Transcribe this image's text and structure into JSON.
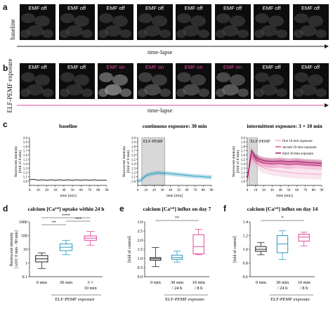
{
  "panel_a": {
    "letter": "a",
    "row_label": "baseline",
    "frames": [
      "EMF off",
      "EMF off",
      "EMF off",
      "EMF off",
      "EMF off",
      "EMF off",
      "EMF off",
      "EMF off"
    ],
    "arrow_label": "time-lapse"
  },
  "panel_b": {
    "letter": "b",
    "row_label": "ELF-PEMF exposure",
    "frames": [
      {
        "label": "EMF off",
        "state": "off"
      },
      {
        "label": "EMF off",
        "state": "off"
      },
      {
        "label": "EMF on",
        "state": "on"
      },
      {
        "label": "EMF on",
        "state": "on"
      },
      {
        "label": "EMF on",
        "state": "on"
      },
      {
        "label": "EMF on",
        "state": "on"
      },
      {
        "label": "EMF off",
        "state": "off"
      },
      {
        "label": "EMF off",
        "state": "off"
      }
    ],
    "arrow_label": "time-lapse",
    "on_color": "#e0489a"
  },
  "panel_c": {
    "letter": "c",
    "charts": [
      {
        "title": "baseline",
        "ylabel": "fluorescent intensity [fold of 0 min]",
        "xlabel": "time [min]",
        "type": "line",
        "xlim": [
          0,
          90
        ],
        "ylim": [
          0.9,
          2.0
        ],
        "xticks": [
          0,
          10,
          20,
          30,
          40,
          50,
          60,
          70,
          80,
          90
        ],
        "yticks": [
          "1.0",
          "1.1",
          "1.2",
          "1.3",
          "1.4",
          "1.5",
          "1.6",
          "1.7",
          "1.8",
          "1.9",
          "2.0"
        ],
        "series": [
          {
            "color": "#222222",
            "x": [
              0,
              5,
              10,
              15,
              20,
              25,
              30,
              35,
              40,
              45,
              50,
              55,
              60,
              65,
              70,
              75,
              80,
              85,
              90
            ],
            "y": [
              1.03,
              1.04,
              1.02,
              1.03,
              1.02,
              1.03,
              1.02,
              1.03,
              1.02,
              1.03,
              1.02,
              1.03,
              1.02,
              1.03,
              1.02,
              1.03,
              1.02,
              1.02,
              1.02
            ]
          }
        ]
      },
      {
        "title": "continuous exposure: 30 min",
        "ylabel": "fluorescent intensity [fold of 0 min]",
        "xlabel": "time [min]",
        "type": "line",
        "xlim": [
          0,
          90
        ],
        "ylim": [
          0.9,
          2.0
        ],
        "xticks": [
          0,
          10,
          20,
          30,
          40,
          50,
          60,
          70,
          80,
          90
        ],
        "yticks": [
          "1.0",
          "1.1",
          "1.2",
          "1.3",
          "1.4",
          "1.5",
          "1.6",
          "1.7",
          "1.8",
          "1.9",
          "2.0"
        ],
        "shade": {
          "label": "ELF-PEMF",
          "from": 5,
          "to": 33
        },
        "series": [
          {
            "color": "#2a9bbf",
            "x": [
              0,
              3,
              6,
              9,
              12,
              15,
              18,
              21,
              24,
              27,
              30,
              33,
              36,
              40,
              45,
              50,
              55,
              60,
              65,
              70,
              75,
              80,
              85,
              90
            ],
            "y": [
              1.0,
              1.01,
              1.06,
              1.11,
              1.14,
              1.16,
              1.17,
              1.18,
              1.19,
              1.19,
              1.18,
              1.18,
              1.18,
              1.17,
              1.16,
              1.15,
              1.14,
              1.13,
              1.12,
              1.11,
              1.11,
              1.1,
              1.09,
              1.09
            ],
            "band": 0.05
          }
        ]
      },
      {
        "title": "intermittent exposure: 3 × 10 min",
        "ylabel": "fluorescent intensity [fold of 0 min]",
        "xlabel": "time [min]",
        "type": "line",
        "xlim": [
          0,
          90
        ],
        "ylim": [
          0.9,
          2.0
        ],
        "xticks": [
          0,
          10,
          20,
          30,
          40,
          50,
          60,
          70,
          80,
          90
        ],
        "yticks": [
          "1.0",
          "1.1",
          "1.2",
          "1.3",
          "1.4",
          "1.5",
          "1.6",
          "1.7",
          "1.8",
          "1.9",
          "2.0"
        ],
        "shade": {
          "label": "ELF-PEMF",
          "from": 2,
          "to": 12
        },
        "legend": [
          "first 10 min exposure",
          "second 10 min exposure",
          "third 10 min exposure"
        ],
        "series": [
          {
            "name": "first 10 min exposure",
            "color": "#f0a8c8",
            "x": [
              0,
              5,
              10,
              15,
              20,
              30,
              40,
              50,
              60,
              70,
              80,
              90
            ],
            "y": [
              1.05,
              1.55,
              1.45,
              1.35,
              1.3,
              1.25,
              1.22,
              1.2,
              1.18,
              1.17,
              1.16,
              1.15
            ],
            "band": 0.12
          },
          {
            "name": "second 10 min exposure",
            "color": "#e0489a",
            "x": [
              0,
              5,
              10,
              15,
              20,
              30,
              40,
              50,
              60,
              70,
              80,
              90
            ],
            "y": [
              1.05,
              1.6,
              1.5,
              1.45,
              1.42,
              1.4,
              1.41,
              1.38,
              1.4,
              1.38,
              1.37,
              1.36
            ],
            "band": 0.1
          },
          {
            "name": "third 10 min exposure",
            "color": "#9a1458",
            "x": [
              0,
              5,
              10,
              15,
              20,
              30,
              40,
              50,
              60,
              70,
              80,
              90
            ],
            "y": [
              1.05,
              1.7,
              1.55,
              1.5,
              1.47,
              1.45,
              1.46,
              1.44,
              1.45,
              1.43,
              1.42,
              1.41
            ],
            "band": 0.08
          }
        ]
      }
    ]
  },
  "panel_d": {
    "letter": "d",
    "title": "calcium [Ca²⁺] uptake within 24 h",
    "ylabel": "fluorescent intensity [AUC 0 min - 90 min]",
    "yticks": [
      "0.1",
      "1",
      "10",
      "100",
      "1000"
    ],
    "categories": [
      "0 min",
      "30 min",
      "3 ×\n10 min"
    ],
    "xlabel": "ELF-PEMF exposure",
    "type": "box",
    "log": true,
    "colors": [
      "#222222",
      "#2a9bbf",
      "#e0489a"
    ],
    "boxes": [
      {
        "min": 0.4,
        "q1": 1.2,
        "median": 2.0,
        "q3": 3.5,
        "max": 5.5
      },
      {
        "min": 4,
        "q1": 8,
        "median": 14,
        "q3": 25,
        "max": 45
      },
      {
        "min": 20,
        "q1": 45,
        "median": 65,
        "q3": 95,
        "max": 200
      }
    ],
    "significance": [
      "****",
      "**",
      "***"
    ]
  },
  "panel_e": {
    "letter": "e",
    "title": "calcium [Ca²⁺] influx on day 7",
    "ylabel": "[fold of control]",
    "yticks": [
      "0.0",
      "0.5",
      "1.0",
      "1.5",
      "2.0",
      "2.5",
      "3.0"
    ],
    "categories": [
      "0 min",
      "30 min\n/ 24 h",
      "10 min\n/ 8 h"
    ],
    "xlabel": "ELF-PEMF exposure",
    "type": "box",
    "colors": [
      "#222222",
      "#2a9bbf",
      "#e0489a"
    ],
    "boxes": [
      {
        "min": 0.55,
        "q1": 0.9,
        "median": 0.98,
        "q3": 1.05,
        "max": 1.6
      },
      {
        "min": 0.8,
        "q1": 0.95,
        "median": 1.05,
        "q3": 1.18,
        "max": 1.4
      },
      {
        "min": 1.2,
        "q1": 1.25,
        "median": 1.65,
        "q3": 2.3,
        "max": 2.6
      }
    ],
    "significance": [
      "**"
    ]
  },
  "panel_f": {
    "letter": "f",
    "title": "calcium [Ca²⁺] influx on day 14",
    "ylabel": "[fold of control]",
    "yticks": [
      "0.6",
      "0.8",
      "1.0",
      "1.2",
      "1.4"
    ],
    "categories": [
      "0 min",
      "30 min\n/ 24 h",
      "10 min\n/ 8 h"
    ],
    "xlabel": "ELF-PEMF exposure",
    "type": "box",
    "colors": [
      "#222222",
      "#2a9bbf",
      "#e0489a"
    ],
    "boxes": [
      {
        "min": 0.92,
        "q1": 0.97,
        "median": 1.0,
        "q3": 1.04,
        "max": 1.1
      },
      {
        "min": 0.85,
        "q1": 0.95,
        "median": 1.08,
        "q3": 1.2,
        "max": 1.27
      },
      {
        "min": 1.05,
        "q1": 1.12,
        "median": 1.18,
        "q3": 1.22,
        "max": 1.25
      }
    ],
    "significance": [
      "*"
    ]
  }
}
